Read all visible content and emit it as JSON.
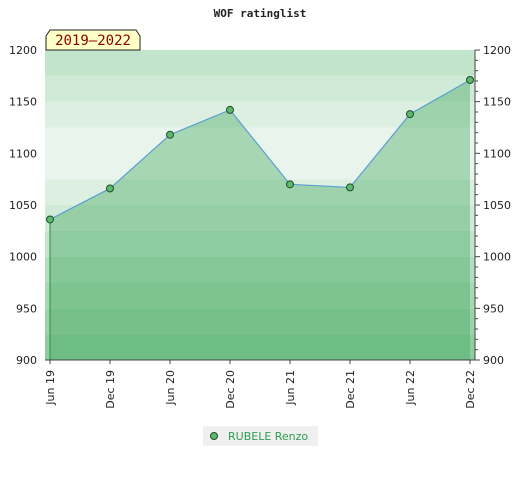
{
  "chart_data": {
    "type": "area",
    "title": "WOF ratinglist",
    "period_label": "2019–2022",
    "x_labels": [
      "Jun 19",
      "Dec 19",
      "Jun 20",
      "Dec 20",
      "Jun 21",
      "Dec 21",
      "Jun 22",
      "Dec 22"
    ],
    "y_ticks": [
      900,
      950,
      1000,
      1050,
      1100,
      1150,
      1200
    ],
    "ylim": [
      900,
      1200
    ],
    "grid": true,
    "legend_position": "bottom-center",
    "series": [
      {
        "name": "RUBELE Renzo",
        "color": "#2e9e4f",
        "values": [
          1036,
          1066,
          1118,
          1142,
          1070,
          1067,
          1138,
          1171
        ]
      }
    ]
  }
}
